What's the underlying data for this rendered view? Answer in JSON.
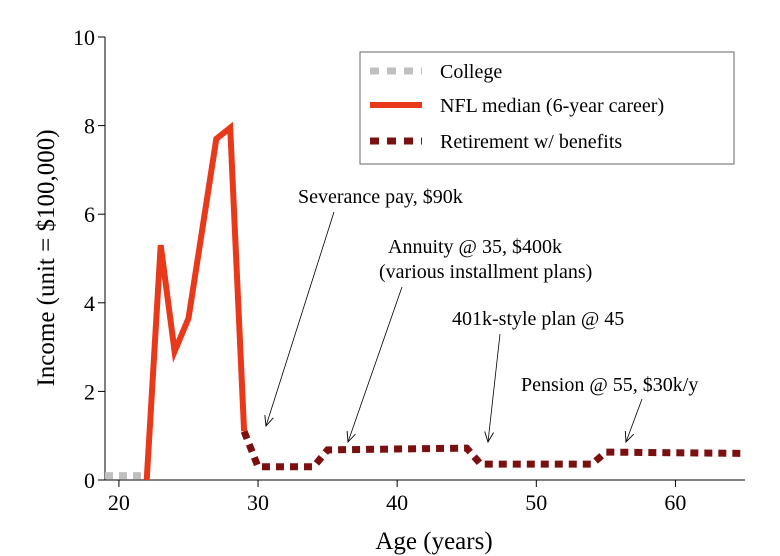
{
  "chart_data": {
    "type": "line",
    "xlabel": "Age (years)",
    "ylabel": "Income (unit = $100,000)",
    "xlim": [
      19,
      65
    ],
    "ylim": [
      0,
      10
    ],
    "xticks": [
      "20",
      "30",
      "40",
      "50",
      "60"
    ],
    "yticks": [
      "0",
      "2",
      "4",
      "6",
      "8",
      "10"
    ],
    "legend": "top-right",
    "grid": false,
    "series": [
      {
        "name": "College",
        "color": "#c0c0c0",
        "style": "dotted",
        "points": [
          [
            19,
            0.1
          ],
          [
            22,
            0.1
          ]
        ]
      },
      {
        "name": "NFL median (6-year career)",
        "color": "#e8391b",
        "style": "solid",
        "points": [
          [
            22,
            0.0
          ],
          [
            23,
            5.3
          ],
          [
            24,
            2.9
          ],
          [
            25,
            3.65
          ],
          [
            27,
            7.7
          ],
          [
            28,
            7.95
          ],
          [
            29,
            1.1
          ]
        ]
      },
      {
        "name": "Retirement w/ benefits",
        "color": "#7a1010",
        "style": "dotted",
        "points": [
          [
            29,
            1.1
          ],
          [
            30,
            0.3
          ],
          [
            34,
            0.3
          ],
          [
            35,
            0.68
          ],
          [
            45,
            0.72
          ],
          [
            46,
            0.36
          ],
          [
            54,
            0.36
          ],
          [
            55,
            0.63
          ],
          [
            65,
            0.6
          ]
        ]
      }
    ],
    "annotations": [
      {
        "text": "Severance pay, $90k",
        "x": 29,
        "y": 1.1
      },
      {
        "text": "Annuity @ 35, $400k",
        "text2": "(various installment plans)",
        "x": 35.5,
        "y": 0.78
      },
      {
        "text": "401k-style plan @ 45",
        "x": 46,
        "y": 0.78
      },
      {
        "text": "Pension @ 55, $30k/y",
        "x": 56,
        "y": 0.78
      }
    ]
  }
}
